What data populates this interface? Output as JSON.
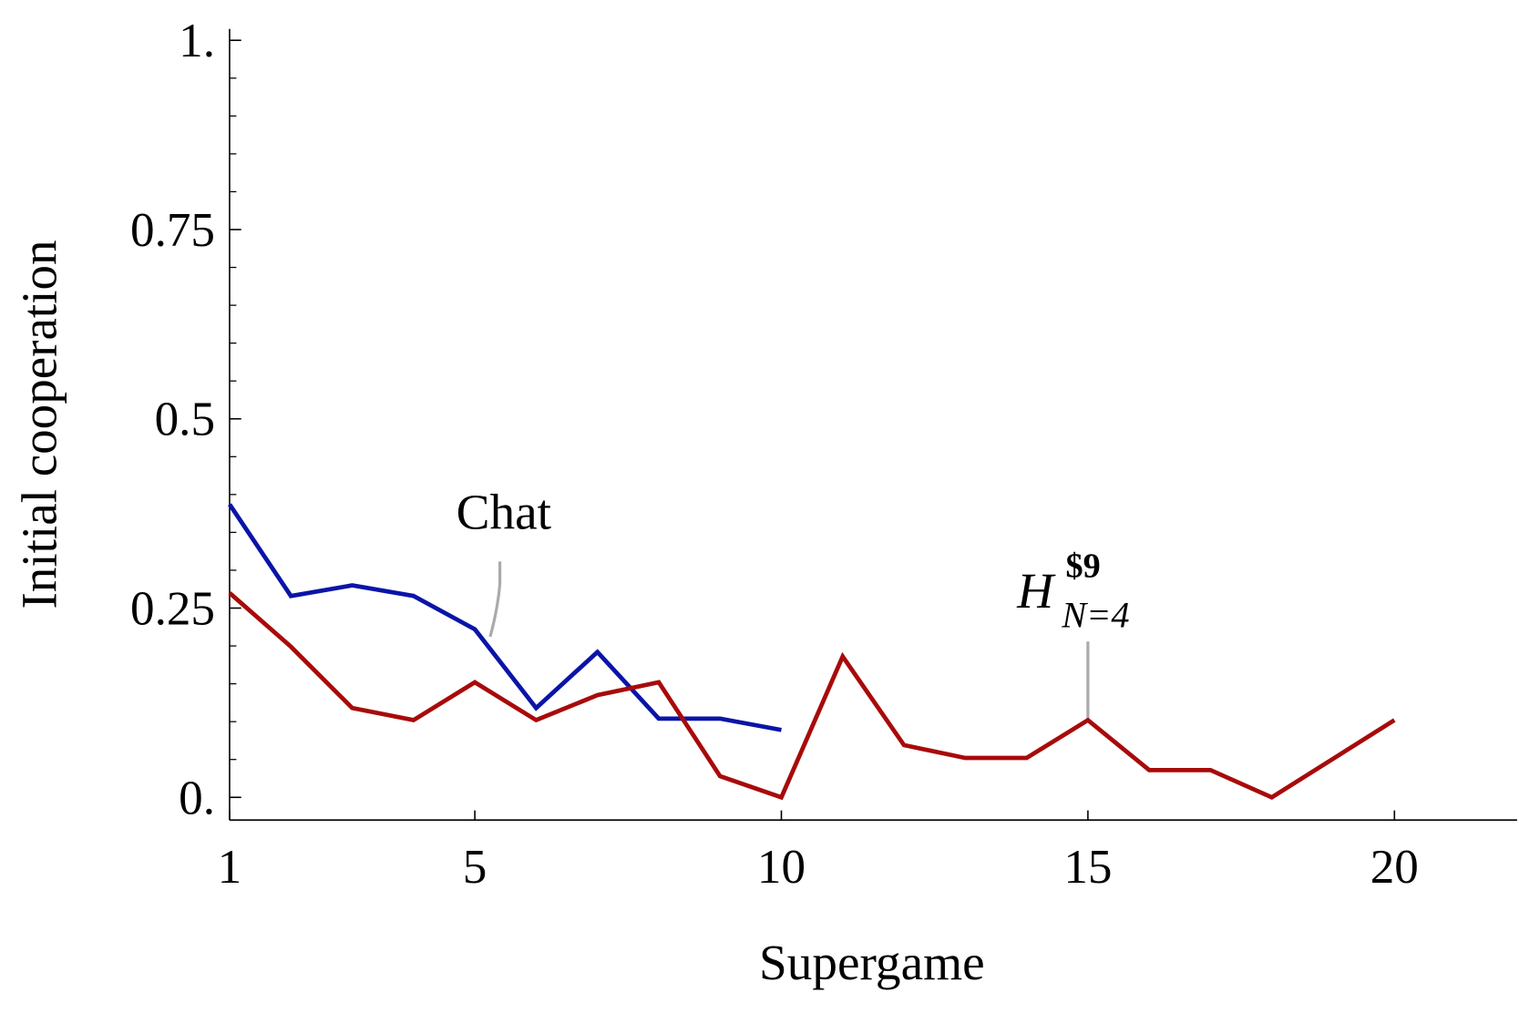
{
  "chart_data": {
    "type": "line",
    "x_label": "Supergame",
    "y_label": "Initial cooperation",
    "x": [
      1,
      2,
      3,
      4,
      5,
      6,
      7,
      8,
      9,
      10,
      11,
      12,
      13,
      14,
      15,
      16,
      17,
      18,
      19,
      20
    ],
    "series": [
      {
        "name": "Chat",
        "color": "#0a14a8",
        "values": [
          0.387,
          0.266,
          0.28,
          0.266,
          0.222,
          0.118,
          0.192,
          0.104,
          0.104,
          0.089,
          null,
          null,
          null,
          null,
          null,
          null,
          null,
          null,
          null,
          null
        ]
      },
      {
        "name": "H",
        "color": "#a80a0a",
        "values": [
          0.27,
          0.199,
          0.118,
          0.102,
          0.152,
          0.102,
          0.135,
          0.152,
          0.028,
          0,
          0.186,
          0.069,
          0.052,
          0.052,
          0.102,
          0.036,
          0.036,
          0,
          0.051,
          0.102
        ]
      }
    ],
    "h_superscript": "$9",
    "h_subscript": "N=4",
    "xlim": [
      1,
      22
    ],
    "ylim": [
      -0.03,
      1.015
    ],
    "xticks": [
      1,
      5,
      10,
      15,
      20
    ],
    "yticks": [
      {
        "value": 0,
        "label": "0."
      },
      0.25,
      0.5,
      0.75,
      {
        "value": 1,
        "label": "1."
      }
    ],
    "yminorticks": [
      0.05,
      0.1,
      0.15,
      0.2,
      0.3,
      0.35,
      0.4,
      0.45,
      0.55,
      0.6,
      0.65,
      0.7,
      0.8,
      0.85,
      0.9,
      0.95
    ]
  }
}
